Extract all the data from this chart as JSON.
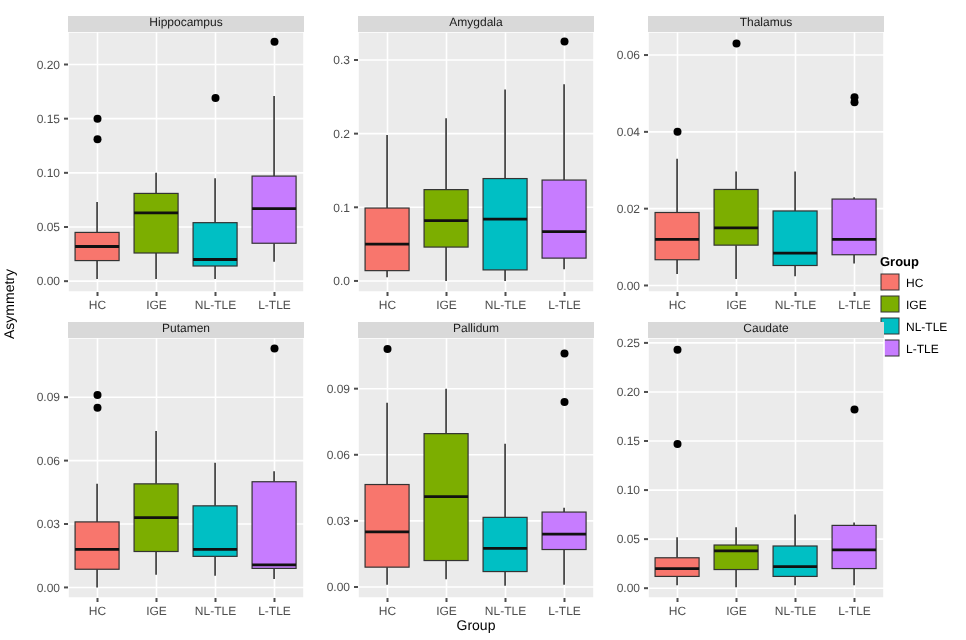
{
  "chart_data": [
    {
      "type": "box",
      "title": "Hippocampus",
      "categories": [
        "HC",
        "IGE",
        "NL-TLE",
        "L-TLE"
      ],
      "ylim": [
        -0.01,
        0.23
      ],
      "yticks": [
        {
          "value": 0,
          "label": "0.00"
        },
        {
          "value": 0.05,
          "label": "0.05"
        },
        {
          "value": 0.1,
          "label": "0.10"
        },
        {
          "value": 0.15,
          "label": "0.15"
        },
        {
          "value": 0.2,
          "label": "0.20"
        }
      ],
      "grid": true,
      "series": [
        {
          "color": "#f8766d",
          "boxes": [
            {
              "low": 0.002,
              "q1": 0.019,
              "median": 0.032,
              "q3": 0.045,
              "high": 0.073,
              "outliers": [
                0.15,
                0.131
              ]
            },
            null,
            null,
            null
          ]
        },
        {
          "color": "#7cae00",
          "boxes": [
            null,
            {
              "low": 0.002,
              "q1": 0.026,
              "median": 0.063,
              "q3": 0.081,
              "high": 0.1
            },
            null,
            null
          ]
        },
        {
          "color": "#00bfc4",
          "boxes": [
            null,
            null,
            {
              "low": 0.002,
              "q1": 0.014,
              "median": 0.02,
              "q3": 0.054,
              "high": 0.095,
              "outliers": [
                0.169
              ]
            },
            null
          ]
        },
        {
          "color": "#c77cff",
          "boxes": [
            null,
            null,
            null,
            {
              "low": 0.018,
              "q1": 0.035,
              "median": 0.067,
              "q3": 0.097,
              "high": 0.171,
              "outliers": [
                0.221
              ]
            }
          ]
        }
      ]
    },
    {
      "type": "box",
      "title": "Amygdala",
      "categories": [
        "HC",
        "IGE",
        "NL-TLE",
        "L-TLE"
      ],
      "ylim": [
        -0.015,
        0.338
      ],
      "yticks": [
        {
          "value": 0,
          "label": "0.0"
        },
        {
          "value": 0.1,
          "label": "0.1"
        },
        {
          "value": 0.2,
          "label": "0.2"
        },
        {
          "value": 0.3,
          "label": "0.3"
        }
      ],
      "grid": true,
      "series": [
        {
          "color": "#f8766d",
          "boxes": [
            {
              "low": 0.005,
              "q1": 0.014,
              "median": 0.05,
              "q3": 0.099,
              "high": 0.198
            },
            null,
            null,
            null
          ]
        },
        {
          "color": "#7cae00",
          "boxes": [
            null,
            {
              "low": 0,
              "q1": 0.046,
              "median": 0.082,
              "q3": 0.124,
              "high": 0.221
            },
            null,
            null
          ]
        },
        {
          "color": "#00bfc4",
          "boxes": [
            null,
            null,
            {
              "low": 0,
              "q1": 0.015,
              "median": 0.084,
              "q3": 0.139,
              "high": 0.26
            },
            null
          ]
        },
        {
          "color": "#c77cff",
          "boxes": [
            null,
            null,
            null,
            {
              "low": 0.016,
              "q1": 0.031,
              "median": 0.067,
              "q3": 0.137,
              "high": 0.267,
              "outliers": [
                0.325
              ]
            }
          ]
        }
      ]
    },
    {
      "type": "box",
      "title": "Thalamus",
      "categories": [
        "HC",
        "IGE",
        "NL-TLE",
        "L-TLE"
      ],
      "ylim": [
        -0.0017,
        0.066
      ],
      "yticks": [
        {
          "value": 0,
          "label": "0.00"
        },
        {
          "value": 0.02,
          "label": "0.02"
        },
        {
          "value": 0.04,
          "label": "0.04"
        },
        {
          "value": 0.06,
          "label": "0.06"
        }
      ],
      "grid": true,
      "legend": "right",
      "legend_title": "Group",
      "series": [
        {
          "name": "HC",
          "color": "#f8766d",
          "boxes": [
            {
              "low": 0.003,
              "q1": 0.0067,
              "median": 0.012,
              "q3": 0.019,
              "high": 0.033,
              "outliers": [
                0.04
              ]
            },
            null,
            null,
            null
          ]
        },
        {
          "name": "IGE",
          "color": "#7cae00",
          "boxes": [
            null,
            {
              "low": 0.0017,
              "q1": 0.0105,
              "median": 0.015,
              "q3": 0.025,
              "high": 0.0297,
              "outliers": [
                0.063
              ]
            },
            null,
            null
          ]
        },
        {
          "name": "NL-TLE",
          "color": "#00bfc4",
          "boxes": [
            null,
            null,
            {
              "low": 0.0024,
              "q1": 0.0052,
              "median": 0.0084,
              "q3": 0.0194,
              "high": 0.0297
            },
            null
          ]
        },
        {
          "name": "L-TLE",
          "color": "#c77cff",
          "boxes": [
            null,
            null,
            null,
            {
              "low": 0.0057,
              "q1": 0.008,
              "median": 0.012,
              "q3": 0.0225,
              "high": 0.023,
              "outliers": [
                0.049,
                0.0477
              ]
            }
          ]
        }
      ]
    },
    {
      "type": "box",
      "title": "Putamen",
      "ylabel": "Asymmetry",
      "categories": [
        "HC",
        "IGE",
        "NL-TLE",
        "L-TLE"
      ],
      "ylim": [
        -0.005,
        0.118
      ],
      "yticks": [
        {
          "value": 0,
          "label": "0.00"
        },
        {
          "value": 0.03,
          "label": "0.03"
        },
        {
          "value": 0.06,
          "label": "0.06"
        },
        {
          "value": 0.09,
          "label": "0.09"
        }
      ],
      "grid": true,
      "series": [
        {
          "color": "#f8766d",
          "boxes": [
            {
              "low": 0,
              "q1": 0.0086,
              "median": 0.018,
              "q3": 0.031,
              "high": 0.049,
              "outliers": [
                0.091,
                0.085
              ]
            },
            null,
            null,
            null
          ]
        },
        {
          "color": "#7cae00",
          "boxes": [
            null,
            {
              "low": 0.006,
              "q1": 0.017,
              "median": 0.033,
              "q3": 0.049,
              "high": 0.074
            },
            null,
            null
          ]
        },
        {
          "color": "#00bfc4",
          "boxes": [
            null,
            null,
            {
              "low": 0.0055,
              "q1": 0.0147,
              "median": 0.018,
              "q3": 0.0386,
              "high": 0.059
            },
            null
          ]
        },
        {
          "color": "#c77cff",
          "boxes": [
            null,
            null,
            null,
            {
              "low": 0.004,
              "q1": 0.009,
              "median": 0.0107,
              "q3": 0.05,
              "high": 0.055,
              "outliers": [
                0.113
              ]
            }
          ]
        }
      ]
    },
    {
      "type": "box",
      "title": "Pallidum",
      "xlabel": "Group",
      "categories": [
        "HC",
        "IGE",
        "NL-TLE",
        "L-TLE"
      ],
      "ylim": [
        -0.005,
        0.113
      ],
      "yticks": [
        {
          "value": 0,
          "label": "0.00"
        },
        {
          "value": 0.03,
          "label": "0.03"
        },
        {
          "value": 0.06,
          "label": "0.06"
        },
        {
          "value": 0.09,
          "label": "0.09"
        }
      ],
      "grid": true,
      "series": [
        {
          "color": "#f8766d",
          "boxes": [
            {
              "low": 0.001,
              "q1": 0.009,
              "median": 0.025,
              "q3": 0.0465,
              "high": 0.0836,
              "outliers": [
                0.108
              ]
            },
            null,
            null,
            null
          ]
        },
        {
          "color": "#7cae00",
          "boxes": [
            null,
            {
              "low": 0.0035,
              "q1": 0.012,
              "median": 0.041,
              "q3": 0.0696,
              "high": 0.09
            },
            null,
            null
          ]
        },
        {
          "color": "#00bfc4",
          "boxes": [
            null,
            null,
            {
              "low": 0.0006,
              "q1": 0.007,
              "median": 0.0175,
              "q3": 0.0316,
              "high": 0.065
            },
            null
          ]
        },
        {
          "color": "#c77cff",
          "boxes": [
            null,
            null,
            null,
            {
              "low": 0.001,
              "q1": 0.017,
              "median": 0.024,
              "q3": 0.034,
              "high": 0.036,
              "outliers": [
                0.106,
                0.084
              ]
            }
          ]
        }
      ]
    },
    {
      "type": "box",
      "title": "Caudate",
      "categories": [
        "HC",
        "IGE",
        "NL-TLE",
        "L-TLE"
      ],
      "ylim": [
        -0.01,
        0.255
      ],
      "yticks": [
        {
          "value": 0,
          "label": "0.00"
        },
        {
          "value": 0.05,
          "label": "0.05"
        },
        {
          "value": 0.1,
          "label": "0.10"
        },
        {
          "value": 0.15,
          "label": "0.15"
        },
        {
          "value": 0.2,
          "label": "0.20"
        },
        {
          "value": 0.25,
          "label": "0.25"
        }
      ],
      "grid": true,
      "series": [
        {
          "color": "#f8766d",
          "boxes": [
            {
              "low": 0.003,
              "q1": 0.012,
              "median": 0.02,
              "q3": 0.031,
              "high": 0.052,
              "outliers": [
                0.243,
                0.147
              ]
            },
            null,
            null,
            null
          ]
        },
        {
          "color": "#7cae00",
          "boxes": [
            null,
            {
              "low": 0.001,
              "q1": 0.019,
              "median": 0.038,
              "q3": 0.044,
              "high": 0.062
            },
            null,
            null
          ]
        },
        {
          "color": "#00bfc4",
          "boxes": [
            null,
            null,
            {
              "low": 0.003,
              "q1": 0.012,
              "median": 0.022,
              "q3": 0.043,
              "high": 0.075
            },
            null
          ]
        },
        {
          "color": "#c77cff",
          "boxes": [
            null,
            null,
            null,
            {
              "low": 0.003,
              "q1": 0.02,
              "median": 0.039,
              "q3": 0.064,
              "high": 0.067,
              "outliers": [
                0.182
              ]
            }
          ]
        }
      ]
    }
  ]
}
